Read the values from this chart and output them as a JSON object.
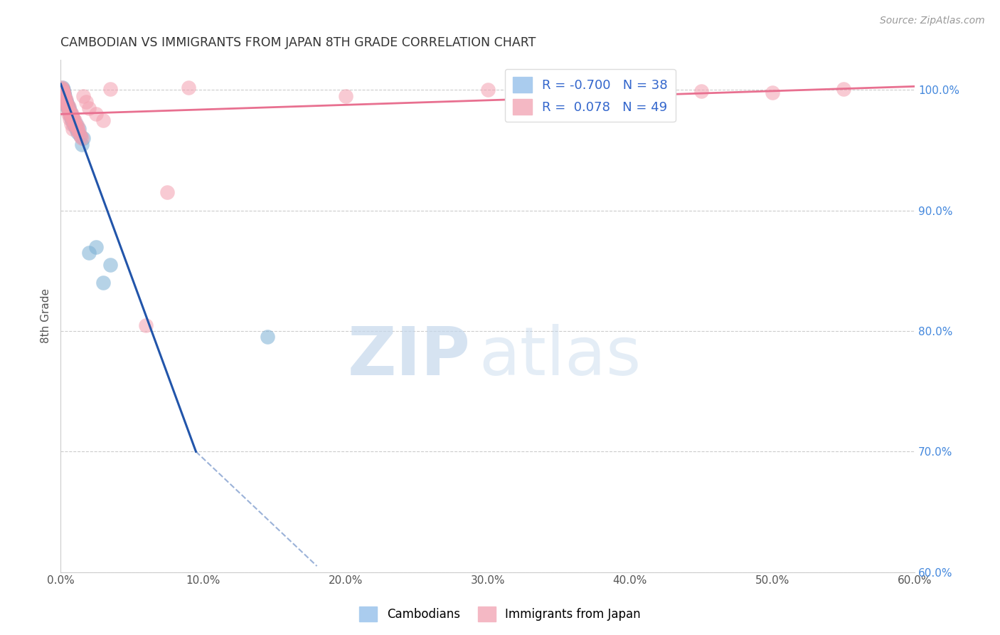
{
  "title": "CAMBODIAN VS IMMIGRANTS FROM JAPAN 8TH GRADE CORRELATION CHART",
  "source": "Source: ZipAtlas.com",
  "ylabel": "8th Grade",
  "x_ticks": [
    0.0,
    10.0,
    20.0,
    30.0,
    40.0,
    50.0,
    60.0
  ],
  "x_tick_labels": [
    "0.0%",
    "10.0%",
    "20.0%",
    "30.0%",
    "40.0%",
    "50.0%",
    "60.0%"
  ],
  "y_ticks": [
    60.0,
    70.0,
    80.0,
    90.0,
    100.0
  ],
  "y_tick_labels": [
    "60.0%",
    "70.0%",
    "80.0%",
    "90.0%",
    "100.0%"
  ],
  "xlim": [
    0.0,
    60.0
  ],
  "ylim": [
    60.0,
    102.5
  ],
  "cambodian_x": [
    0.15,
    0.25,
    0.3,
    0.35,
    0.4,
    0.5,
    0.55,
    0.6,
    0.65,
    0.7,
    0.8,
    0.9,
    1.0,
    1.1,
    1.2,
    1.4,
    1.6,
    0.2,
    0.25,
    0.3,
    0.4,
    0.5,
    0.6,
    0.7,
    0.8,
    0.9,
    1.1,
    1.3,
    0.15,
    0.2,
    0.35,
    0.45,
    2.5,
    2.0,
    1.5,
    3.5,
    3.0,
    14.5
  ],
  "cambodian_y": [
    100.2,
    99.8,
    99.5,
    99.2,
    99.0,
    98.7,
    98.5,
    98.2,
    98.0,
    97.8,
    97.5,
    97.2,
    97.0,
    96.8,
    96.5,
    96.2,
    96.0,
    100.0,
    99.6,
    99.3,
    99.0,
    98.8,
    98.5,
    98.2,
    97.9,
    97.6,
    97.2,
    96.8,
    100.1,
    99.9,
    99.1,
    98.6,
    87.0,
    86.5,
    95.5,
    85.5,
    84.0,
    79.5
  ],
  "japan_x": [
    0.1,
    0.15,
    0.2,
    0.25,
    0.3,
    0.35,
    0.4,
    0.5,
    0.6,
    0.7,
    0.8,
    0.9,
    1.0,
    1.1,
    1.2,
    1.3,
    1.4,
    1.5,
    1.6,
    1.8,
    2.0,
    2.5,
    3.0,
    3.5,
    0.3,
    0.5,
    0.7,
    0.9,
    0.2,
    0.4,
    0.6,
    0.8,
    1.0,
    1.2,
    0.15,
    0.25,
    7.5,
    9.0,
    20.0,
    30.0,
    40.0,
    55.0,
    50.0,
    45.0,
    6.0,
    0.55,
    0.65,
    0.75,
    0.85
  ],
  "japan_y": [
    100.2,
    100.0,
    99.8,
    99.5,
    99.2,
    99.0,
    98.8,
    98.5,
    98.2,
    98.0,
    97.8,
    97.5,
    97.2,
    97.0,
    96.8,
    96.5,
    96.2,
    96.0,
    99.5,
    99.0,
    98.5,
    98.0,
    97.5,
    100.1,
    99.3,
    98.7,
    98.1,
    97.6,
    99.8,
    99.2,
    98.6,
    98.0,
    97.5,
    97.0,
    100.1,
    99.7,
    91.5,
    100.2,
    99.5,
    100.0,
    100.2,
    100.1,
    99.8,
    99.9,
    80.5,
    98.0,
    97.6,
    97.2,
    96.8
  ],
  "cambodian_color": "#7BAFD4",
  "japan_color": "#F4A0B0",
  "cambodian_line_color": "#2255AA",
  "japan_line_color": "#E87090",
  "R_cambodian": -0.7,
  "N_cambodian": 38,
  "R_japan": 0.078,
  "N_japan": 49,
  "legend_labels": [
    "Cambodians",
    "Immigrants from Japan"
  ],
  "watermark_zip": "ZIP",
  "watermark_atlas": "atlas",
  "background_color": "#ffffff",
  "grid_color": "#cccccc",
  "blue_line_x1": 0.0,
  "blue_line_y1": 100.5,
  "blue_line_x2": 9.5,
  "blue_line_y2": 70.0,
  "blue_dash_x2": 18.0,
  "blue_dash_y2": 60.5,
  "pink_line_x1": 0.0,
  "pink_line_y1": 98.0,
  "pink_line_x2": 60.0,
  "pink_line_y2": 100.3
}
